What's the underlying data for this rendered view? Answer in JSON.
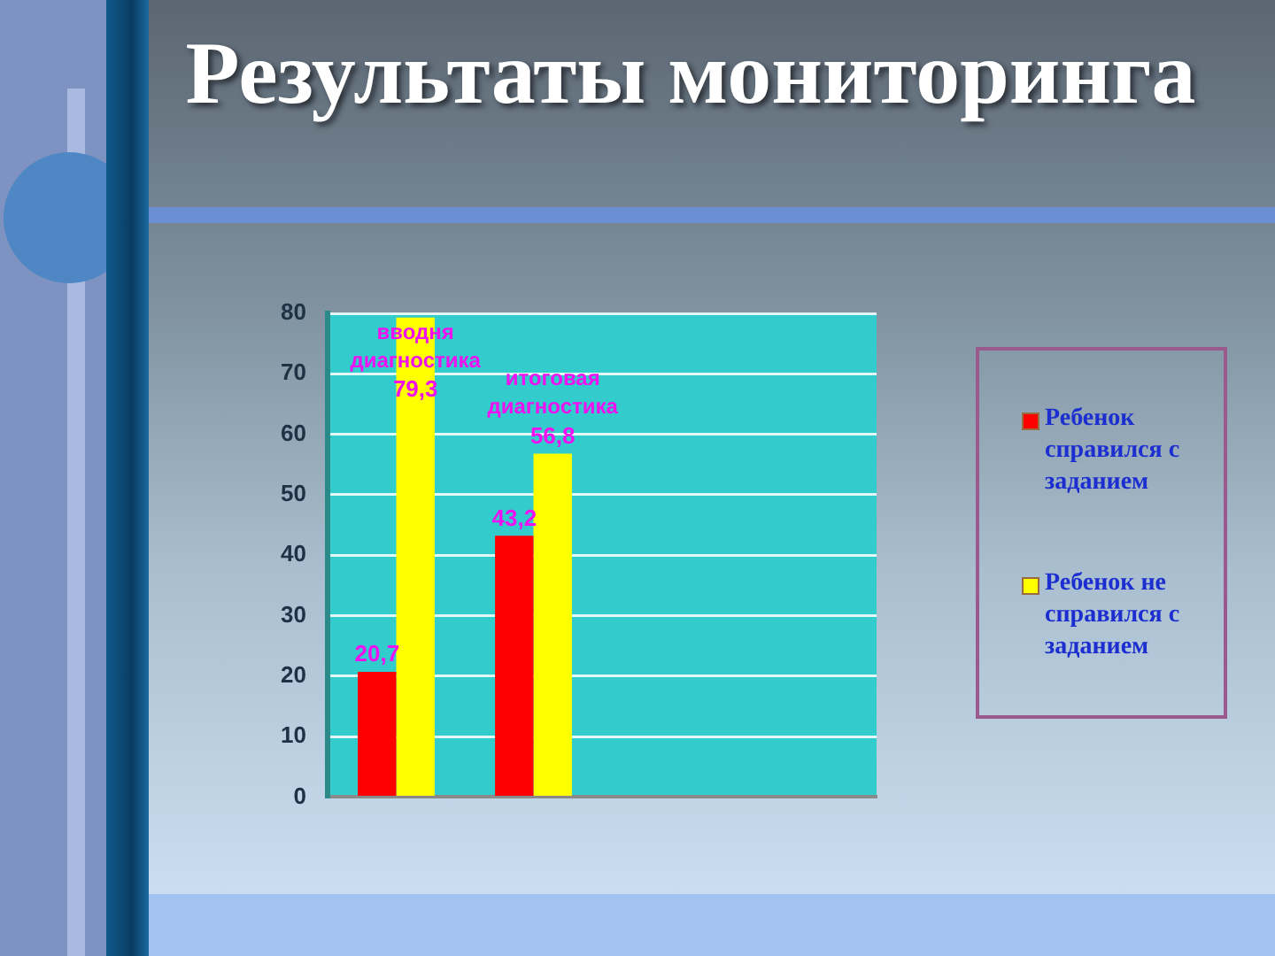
{
  "chart_data": {
    "type": "bar",
    "title": "Результаты мониторинга",
    "categories": [
      "вводня диагностика",
      "итоговая диагностика",
      null,
      null
    ],
    "series": [
      {
        "name": "Ребенок справился с заданием",
        "color": "#ff0000",
        "values": [
          20.7,
          43.2,
          null,
          null
        ],
        "value_labels": [
          "20,7",
          "43,2",
          null,
          null
        ]
      },
      {
        "name": "Ребенок не справился с заданием",
        "color": "#ffff00",
        "values": [
          79.3,
          56.8,
          null,
          null
        ],
        "value_labels": [
          "79,3",
          "56,8",
          null,
          null
        ]
      }
    ],
    "ylim": [
      0,
      80
    ],
    "yticks": [
      0,
      10,
      20,
      30,
      40,
      50,
      60,
      70,
      80
    ],
    "grid": "y",
    "legend": "right"
  }
}
